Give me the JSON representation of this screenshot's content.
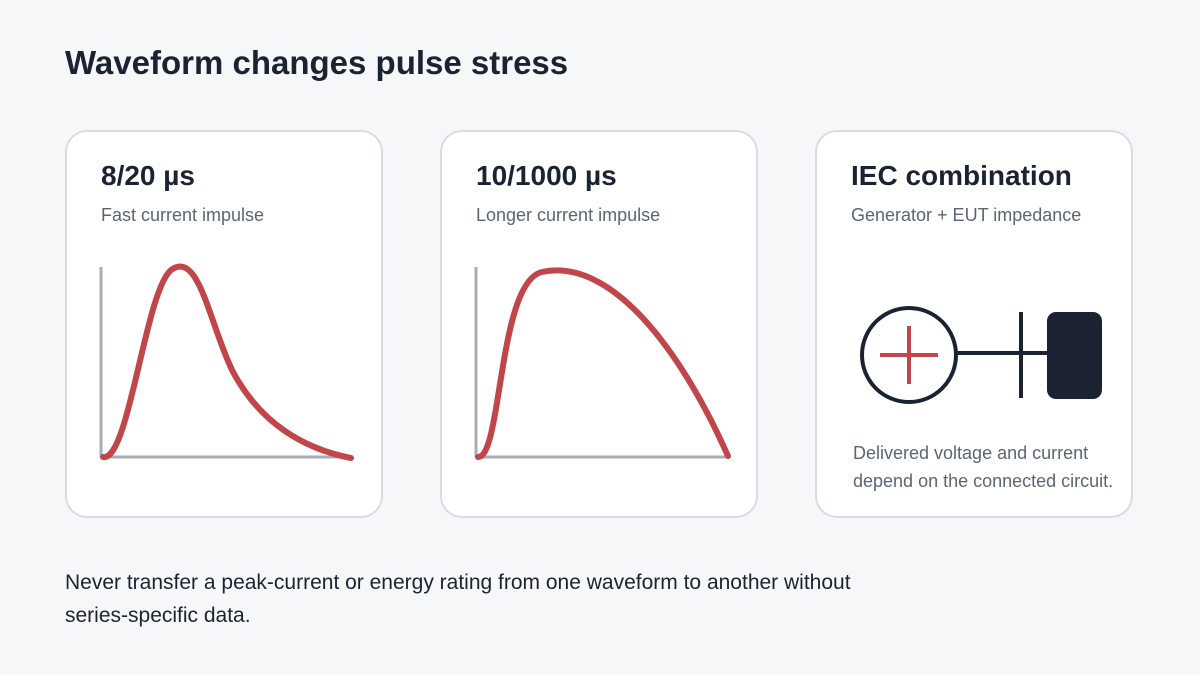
{
  "title": "Waveform changes pulse stress",
  "cards": [
    {
      "title": "8/20 µs",
      "subtitle": "Fast current impulse",
      "waveform": {
        "front_time_us": 8,
        "half_value_time_us": 20
      }
    },
    {
      "title": "10/1000 µs",
      "subtitle": "Longer current impulse",
      "waveform": {
        "front_time_us": 10,
        "half_value_time_us": 1000
      }
    },
    {
      "title": "IEC combination",
      "subtitle": "Generator + EUT impedance",
      "note": "Delivered voltage and current depend on the connected circuit.",
      "icons": [
        "voltage-source-icon",
        "impedance-element-icon",
        "eut-block-icon"
      ]
    }
  ],
  "footnote": "Never transfer a peak-current or energy rating from one waveform to another without series-specific data.",
  "colors": {
    "background": "#f6f7f9",
    "card": "#ffffff",
    "card_border": "#d9dde3",
    "waveform": "#c0464a",
    "axis": "#a7adb6",
    "text_dark": "#1b2333",
    "text_muted": "#5b6573"
  }
}
